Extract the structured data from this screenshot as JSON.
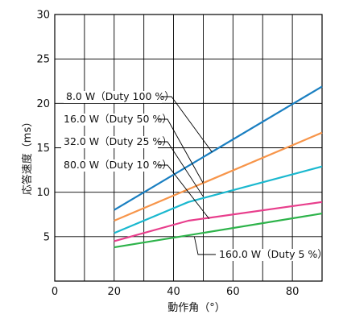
{
  "chart_data": {
    "type": "line",
    "xlabel": "動作角（°）",
    "ylabel": "応答速度（ms）",
    "xlim": [
      0,
      90
    ],
    "ylim": [
      0,
      30
    ],
    "x_ticks": [
      0,
      20,
      40,
      60,
      80
    ],
    "y_ticks": [
      5,
      10,
      15,
      20,
      25,
      30
    ],
    "x_ticklabels": [
      "0",
      "20",
      "40",
      "60",
      "80"
    ],
    "y_ticklabels": [
      "5",
      "10",
      "15",
      "20",
      "25",
      "30"
    ],
    "grid": true,
    "series": [
      {
        "name": "8.0 W（Duty 100 %）",
        "color": "#1a7fc1",
        "points": [
          [
            20,
            8.0
          ],
          [
            90,
            21.9
          ]
        ]
      },
      {
        "name": "16.0 W（Duty 50 %）",
        "color": "#f7954a",
        "points": [
          [
            20,
            6.8
          ],
          [
            90,
            16.7
          ]
        ]
      },
      {
        "name": "32.0 W（Duty 25 %）",
        "color": "#1ab8cf",
        "points": [
          [
            20,
            5.4
          ],
          [
            45,
            8.9
          ],
          [
            90,
            12.9
          ]
        ]
      },
      {
        "name": "80.0 W（Duty 10 %）",
        "color": "#e83e8c",
        "points": [
          [
            20,
            4.5
          ],
          [
            45,
            6.8
          ],
          [
            90,
            8.9
          ]
        ]
      },
      {
        "name": "160.0 W（Duty 5 %）",
        "color": "#2db34a",
        "points": [
          [
            20,
            3.8
          ],
          [
            90,
            7.6
          ]
        ]
      }
    ],
    "annotations": [
      {
        "series": 0,
        "text": "8.0 W（Duty 100 %）",
        "target": [
          53,
          14.5
        ]
      },
      {
        "series": 1,
        "text": "16.0 W（Duty 50 %）",
        "target": [
          50,
          11.0
        ]
      },
      {
        "series": 2,
        "text": "32.0 W（Duty 25 %）",
        "target": [
          50,
          9.5
        ]
      },
      {
        "series": 3,
        "text": "80.0 W（Duty 10 %）",
        "target": [
          52,
          7.0
        ]
      },
      {
        "series": 4,
        "text": "160.0 W（Duty 5 %）",
        "target": [
          47,
          5.0
        ]
      }
    ]
  }
}
